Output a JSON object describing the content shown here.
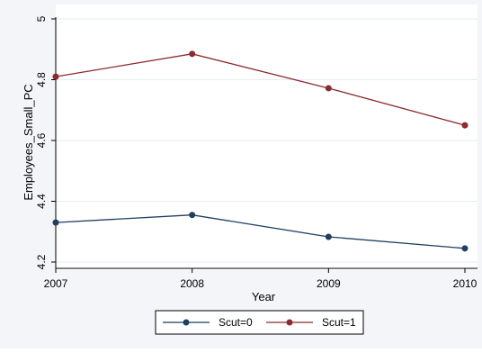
{
  "colors": {
    "background": "#f3f5f8",
    "plot_background": "#ffffff",
    "grid": "#e6ecf0",
    "axis": "#000000"
  },
  "chart_data": {
    "type": "line",
    "x": [
      2007,
      2008,
      2009,
      2010
    ],
    "x_tick_labels": [
      "2007",
      "2008",
      "2009",
      "2010"
    ],
    "y_ticks": [
      4.2,
      4.4,
      4.6,
      4.8,
      5
    ],
    "y_tick_labels": [
      "4.2",
      "4.4",
      "4.6",
      "4.8",
      "5"
    ],
    "xlim": [
      2007,
      2010
    ],
    "ylim": [
      4.2,
      5
    ],
    "xlabel": "Year",
    "ylabel": "Employees_Small_PC",
    "grid": true,
    "legend_position": "bottom",
    "series": [
      {
        "name": "Scut=0",
        "color": "#1f3f5f",
        "values": [
          4.33,
          4.355,
          4.283,
          4.245
        ]
      },
      {
        "name": "Scut=1",
        "color": "#8b2a2f",
        "values": [
          4.81,
          4.885,
          4.772,
          4.65
        ]
      }
    ]
  }
}
